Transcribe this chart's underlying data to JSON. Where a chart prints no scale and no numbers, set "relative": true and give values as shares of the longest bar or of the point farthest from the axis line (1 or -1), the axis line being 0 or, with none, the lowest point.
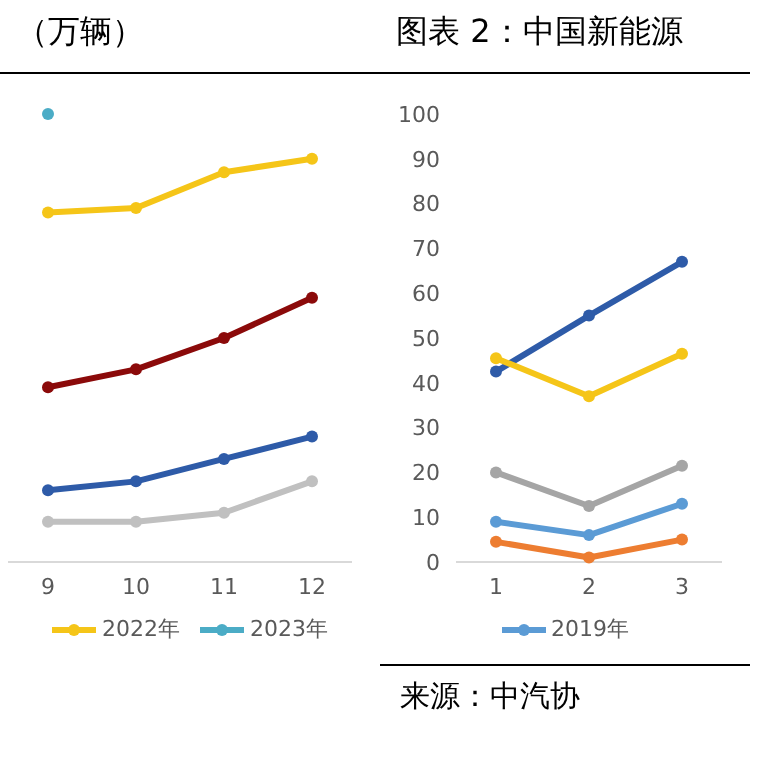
{
  "chart_data": [
    {
      "type": "line",
      "title": "（万辆）",
      "relative": true,
      "categories": [
        "9",
        "10",
        "11",
        "12"
      ],
      "marker": "circle",
      "legend": "bottom",
      "grid": false,
      "series": [
        {
          "color": "#f5c518",
          "name": "2022年",
          "values": [
            0.78,
            0.79,
            0.87,
            0.9
          ]
        },
        {
          "color": "#4bacc6",
          "name": "2023年",
          "values": [
            1,
            null,
            null,
            null
          ]
        },
        {
          "color": "#8b0a0a",
          "values": [
            0.39,
            0.43,
            0.5,
            0.59
          ]
        },
        {
          "color": "#2e5ba8",
          "values": [
            0.16,
            0.18,
            0.23,
            0.28
          ]
        },
        {
          "color": "#c0c0c0",
          "values": [
            0.09,
            0.09,
            0.11,
            0.18
          ]
        }
      ]
    },
    {
      "type": "line",
      "title": "图表 2：中国新能源",
      "categories": [
        "1",
        "2",
        "3"
      ],
      "ylim": [
        0,
        100
      ],
      "yticks": [
        0,
        10,
        20,
        30,
        40,
        50,
        60,
        70,
        80,
        90,
        100
      ],
      "marker": "circle",
      "legend": "bottom",
      "grid": false,
      "annotations": [
        "来源：中汽协"
      ],
      "series": [
        {
          "color": "#2e5ba8",
          "values": [
            42.5,
            55,
            67
          ]
        },
        {
          "color": "#f5c518",
          "values": [
            45.5,
            37,
            46.5
          ]
        },
        {
          "color": "#a5a5a5",
          "values": [
            20,
            12.5,
            21.5
          ]
        },
        {
          "color": "#5b9bd5",
          "name": "2019年",
          "values": [
            9,
            6,
            13
          ]
        },
        {
          "color": "#ed7d31",
          "values": [
            4.5,
            1,
            5
          ]
        }
      ]
    }
  ]
}
